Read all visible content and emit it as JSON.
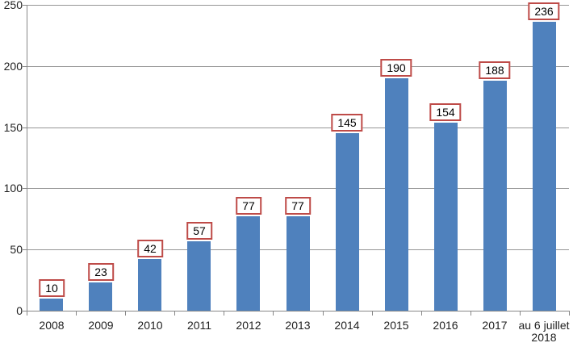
{
  "chart_data": {
    "type": "bar",
    "title": "",
    "xlabel": "",
    "ylabel": "",
    "categories": [
      "2008",
      "2009",
      "2010",
      "2011",
      "2012",
      "2013",
      "2014",
      "2015",
      "2016",
      "2017",
      "au 6 juillet 2018"
    ],
    "values": [
      10,
      23,
      42,
      57,
      77,
      77,
      145,
      190,
      154,
      188,
      236
    ],
    "data_labels": [
      "10",
      "23",
      "42",
      "57",
      "77",
      "77",
      "145",
      "190",
      "154",
      "188",
      "236"
    ],
    "yticks": [
      0,
      50,
      100,
      150,
      200,
      250
    ],
    "ytick_labels": [
      "0",
      "50",
      "100",
      "150",
      "200",
      "250"
    ],
    "ylim": [
      0,
      250
    ],
    "grid": true,
    "legend": false,
    "legend_position": "none",
    "colors": {
      "bar": "#4F81BD",
      "data_label_border": "#BE4B48",
      "data_label_bg": "#FFFFFF",
      "data_label_text": "#000000",
      "gridline": "#969696",
      "axis_line": "#878787",
      "tick_text": "#1F1F1F",
      "background": "#FFFFFF"
    }
  }
}
